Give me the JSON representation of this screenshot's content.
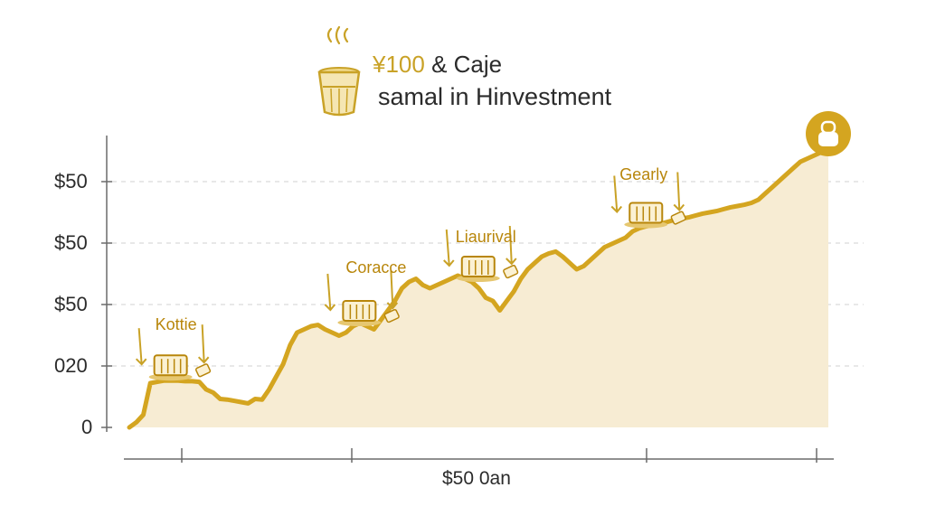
{
  "header": {
    "title_accent": "¥100",
    "title_rest": " & Caje",
    "subtitle": "samal in Hinvestment",
    "icon": "coffee-cup-icon"
  },
  "chart_data": {
    "type": "area",
    "title": "¥100 & Caje",
    "subtitle": "samal in Hinvestment",
    "xlabel": "$50 0an",
    "ylabel": "",
    "y_tick_labels": [
      "0",
      "020",
      "$50",
      "$50",
      "$50"
    ],
    "grid": true,
    "colors": {
      "line": "#d4a520",
      "fill": "#f7ecd3",
      "accent": "#c9a227",
      "text": "#2b2b2b",
      "badge": "#d4a520"
    },
    "annotations": [
      {
        "label": "Kottie",
        "at_index": 5
      },
      {
        "label": "Coracce",
        "at_index": 32
      },
      {
        "label": "Liaurival",
        "at_index": 49
      },
      {
        "label": "Gearly",
        "at_index": 73
      }
    ],
    "x": [
      0,
      1,
      2,
      3,
      4,
      5,
      6,
      7,
      8,
      9,
      10,
      11,
      12,
      13,
      14,
      15,
      16,
      17,
      18,
      19,
      20,
      21,
      22,
      23,
      24,
      25,
      26,
      27,
      28,
      29,
      30,
      31,
      32,
      33,
      34,
      35,
      36,
      37,
      38,
      39,
      40,
      41,
      42,
      43,
      44,
      45,
      46,
      47,
      48,
      49,
      50,
      51,
      52,
      53,
      54,
      55,
      56,
      57,
      58,
      59,
      60,
      61,
      62,
      63,
      64,
      65,
      66,
      67,
      68,
      69,
      70,
      71,
      72,
      73,
      74,
      75,
      76,
      77,
      78,
      79,
      80,
      81,
      82,
      83,
      84,
      85,
      86,
      87,
      88,
      89,
      90,
      91,
      92,
      93,
      94,
      95,
      96,
      97,
      98,
      99,
      100
    ],
    "series": [
      {
        "values": [
          0.0,
          0.08,
          0.2,
          0.7,
          0.72,
          0.74,
          0.74,
          0.74,
          0.73,
          0.73,
          0.72,
          0.6,
          0.55,
          0.45,
          0.44,
          0.42,
          0.4,
          0.38,
          0.45,
          0.44,
          0.6,
          0.8,
          1.0,
          1.3,
          1.5,
          1.55,
          1.6,
          1.62,
          1.55,
          1.5,
          1.45,
          1.5,
          1.6,
          1.65,
          1.6,
          1.55,
          1.7,
          1.85,
          2.0,
          2.2,
          2.3,
          2.35,
          2.25,
          2.2,
          2.25,
          2.3,
          2.35,
          2.4,
          2.35,
          2.3,
          2.2,
          2.05,
          2.0,
          1.85,
          2.0,
          2.15,
          2.35,
          2.5,
          2.6,
          2.7,
          2.75,
          2.78,
          2.7,
          2.6,
          2.5,
          2.55,
          2.65,
          2.75,
          2.85,
          2.9,
          2.95,
          3.0,
          3.1,
          3.15,
          3.18,
          3.2,
          3.22,
          3.25,
          3.28,
          3.3,
          3.32,
          3.35,
          3.38,
          3.4,
          3.42,
          3.45,
          3.48,
          3.5,
          3.52,
          3.55,
          3.6,
          3.7,
          3.8,
          3.9,
          4.0,
          4.1,
          4.2,
          4.25,
          4.3,
          4.35,
          4.4
        ]
      }
    ]
  }
}
